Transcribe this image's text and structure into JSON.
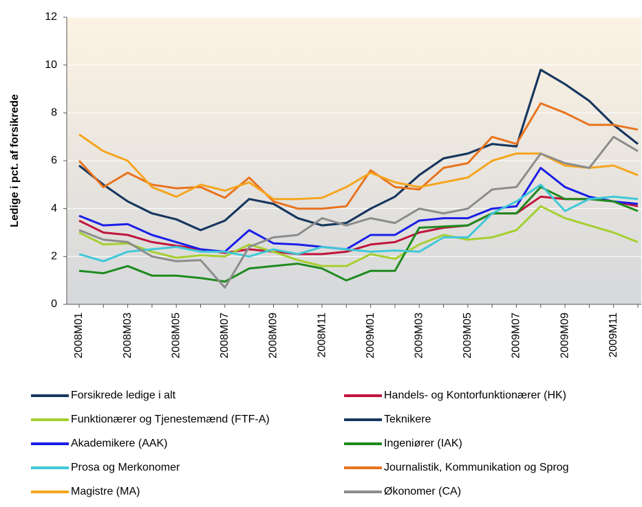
{
  "chart_data": {
    "type": "line",
    "y_label": "Ledige i pct. af forsikrede",
    "categories": [
      "2008M01",
      null,
      "2008M03",
      null,
      "2008M05",
      null,
      "2008M07",
      null,
      "2008M09",
      null,
      "2008M11",
      null,
      "2009M01",
      null,
      "2009M03",
      null,
      "2009M05",
      null,
      "2009M07",
      null,
      "2009M09",
      null,
      "2009M11",
      null
    ],
    "ylim": [
      0,
      12
    ],
    "yticks": [
      0,
      2,
      4,
      6,
      8,
      10,
      12
    ],
    "grid": true,
    "series": [
      {
        "name": "Forsikrede ledige i alt",
        "color": "#17375e",
        "values": [
          5.8,
          5.0,
          4.3,
          3.8,
          3.55,
          3.1,
          3.5,
          4.4,
          4.2,
          3.6,
          3.3,
          3.4,
          4.0,
          4.5,
          5.4,
          6.1,
          6.3,
          6.7,
          6.6,
          9.8,
          9.2,
          8.5,
          7.5,
          6.7
        ]
      },
      {
        "name": "Handels- og Kontorfunktionærer (HK)",
        "color": "#c0143c",
        "values": [
          3.5,
          3.0,
          2.9,
          2.6,
          2.45,
          2.3,
          2.15,
          2.3,
          2.2,
          2.1,
          2.1,
          2.2,
          2.5,
          2.6,
          3.0,
          3.2,
          3.3,
          3.8,
          3.8,
          4.5,
          4.4,
          4.4,
          4.3,
          4.1
        ]
      },
      {
        "name": "Funktionærer og Tjenestemænd (FTF-A)",
        "color": "#a6cf2f",
        "values": [
          3.0,
          2.5,
          2.55,
          2.2,
          1.95,
          2.05,
          2.0,
          2.5,
          2.2,
          1.85,
          1.6,
          1.6,
          2.1,
          1.9,
          2.5,
          2.9,
          2.7,
          2.8,
          3.1,
          4.1,
          3.6,
          3.3,
          3.0,
          2.6
        ]
      },
      {
        "name": "Teknikere",
        "color": "#17375e",
        "values": [
          5.8,
          5.0,
          4.3,
          3.8,
          3.55,
          3.1,
          3.5,
          4.4,
          4.2,
          3.6,
          3.3,
          3.4,
          4.0,
          4.5,
          5.4,
          6.1,
          6.3,
          6.7,
          6.6,
          9.8,
          9.2,
          8.5,
          7.5,
          6.7
        ]
      },
      {
        "name": "Akademikere (AAK)",
        "color": "#1a1ee6",
        "values": [
          3.7,
          3.3,
          3.35,
          2.9,
          2.6,
          2.3,
          2.2,
          3.1,
          2.55,
          2.5,
          2.4,
          2.3,
          2.9,
          2.9,
          3.5,
          3.6,
          3.6,
          4.0,
          4.1,
          5.7,
          4.9,
          4.5,
          4.3,
          4.2
        ]
      },
      {
        "name": "Ingeniører (IAK)",
        "color": "#1e8a1e",
        "values": [
          1.4,
          1.3,
          1.6,
          1.2,
          1.2,
          1.1,
          0.95,
          1.5,
          1.6,
          1.7,
          1.5,
          1.0,
          1.4,
          1.4,
          3.2,
          3.25,
          3.3,
          3.8,
          3.8,
          4.9,
          4.4,
          4.4,
          4.3,
          3.9
        ]
      },
      {
        "name": "Prosa og Merkonomer",
        "color": "#40c8d8",
        "values": [
          2.1,
          1.8,
          2.2,
          2.3,
          2.4,
          2.2,
          2.2,
          2.0,
          2.3,
          2.1,
          2.4,
          2.3,
          2.2,
          2.25,
          2.2,
          2.8,
          2.8,
          3.8,
          4.3,
          5.0,
          3.9,
          4.4,
          4.5,
          4.4
        ]
      },
      {
        "name": "Journalistik, Kommunikation og Sprog",
        "color": "#e8731e",
        "values": [
          6.0,
          4.9,
          5.5,
          5.0,
          4.85,
          4.9,
          4.45,
          5.3,
          4.3,
          4.0,
          4.0,
          4.1,
          5.6,
          4.9,
          4.8,
          5.7,
          5.9,
          7.0,
          6.7,
          8.4,
          8.0,
          7.5,
          7.5,
          7.3
        ]
      },
      {
        "name": "Magistre (MA)",
        "color": "#f5a51e",
        "values": [
          7.1,
          6.4,
          6.0,
          4.9,
          4.5,
          5.0,
          4.75,
          5.1,
          4.4,
          4.4,
          4.45,
          4.9,
          5.5,
          5.1,
          4.9,
          5.1,
          5.3,
          6.0,
          6.3,
          6.3,
          5.8,
          5.7,
          5.8,
          5.4
        ]
      },
      {
        "name": "Økonomer (CA)",
        "color": "#8c8c8c",
        "values": [
          3.1,
          2.7,
          2.6,
          2.0,
          1.8,
          1.85,
          0.7,
          2.4,
          2.8,
          2.9,
          3.6,
          3.3,
          3.6,
          3.4,
          4.0,
          3.8,
          4.0,
          4.8,
          4.9,
          6.3,
          5.9,
          5.7,
          7.0,
          6.4
        ]
      }
    ]
  }
}
